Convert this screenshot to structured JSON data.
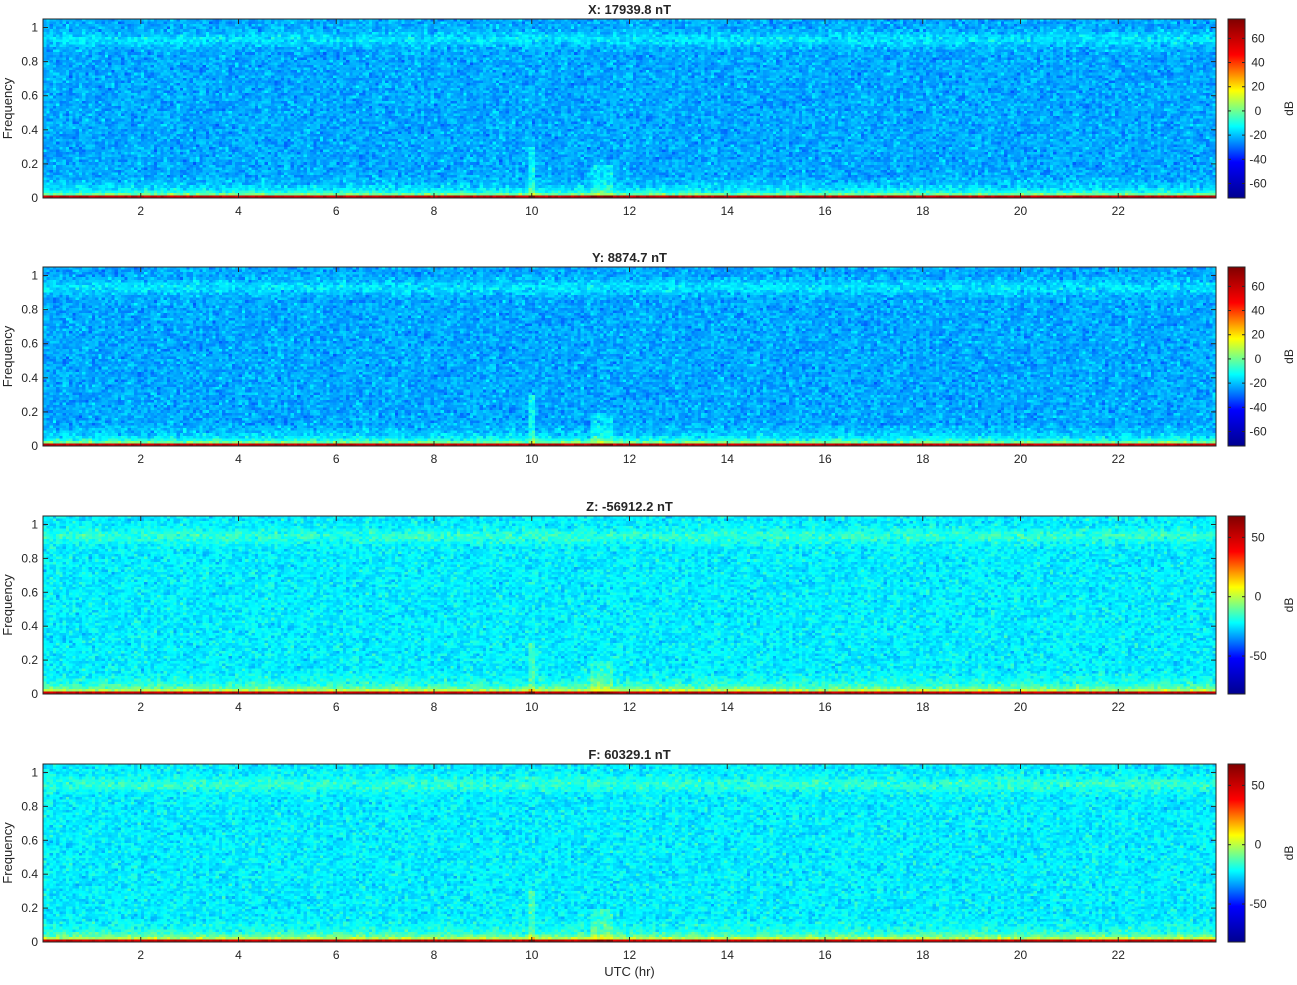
{
  "figure": {
    "xlabel": "UTC (hr)",
    "ylabel": "Frequency",
    "colormap": "jet",
    "colors": [
      "#00008f",
      "#0000ff",
      "#00ffff",
      "#ffff00",
      "#ff0000",
      "#800000"
    ]
  },
  "chart_data": [
    {
      "type": "heatmap",
      "title": "X: 17939.8 nT",
      "xlabel": "",
      "ylabel": "Frequency",
      "xlim": [
        0,
        24
      ],
      "ylim": [
        0,
        1.05
      ],
      "xticks": [
        2,
        4,
        6,
        8,
        10,
        12,
        14,
        16,
        18,
        20,
        22
      ],
      "yticks": [
        0,
        0.2,
        0.4,
        0.6,
        0.8,
        1
      ],
      "colorbar": {
        "label": "dB",
        "range": [
          -72,
          76
        ],
        "ticks": [
          -60,
          -40,
          -20,
          0,
          20,
          40,
          60
        ]
      }
    },
    {
      "type": "heatmap",
      "title": "Y: 8874.7 nT",
      "xlabel": "",
      "ylabel": "Frequency",
      "xlim": [
        0,
        24
      ],
      "ylim": [
        0,
        1.05
      ],
      "xticks": [
        2,
        4,
        6,
        8,
        10,
        12,
        14,
        16,
        18,
        20,
        22
      ],
      "yticks": [
        0,
        0.2,
        0.4,
        0.6,
        0.8,
        1
      ],
      "colorbar": {
        "label": "dB",
        "range": [
          -72,
          76
        ],
        "ticks": [
          -60,
          -40,
          -20,
          0,
          20,
          40,
          60
        ]
      }
    },
    {
      "type": "heatmap",
      "title": "Z: -56912.2 nT",
      "xlabel": "",
      "ylabel": "Frequency",
      "xlim": [
        0,
        24
      ],
      "ylim": [
        0,
        1.05
      ],
      "xticks": [
        2,
        4,
        6,
        8,
        10,
        12,
        14,
        16,
        18,
        20,
        22
      ],
      "yticks": [
        0,
        0.2,
        0.4,
        0.6,
        0.8,
        1
      ],
      "colorbar": {
        "label": "dB",
        "range": [
          -82,
          68
        ],
        "ticks": [
          -50,
          0,
          50
        ]
      }
    },
    {
      "type": "heatmap",
      "title": "F: 60329.1 nT",
      "xlabel": "UTC (hr)",
      "ylabel": "Frequency",
      "xlim": [
        0,
        24
      ],
      "ylim": [
        0,
        1.05
      ],
      "xticks": [
        2,
        4,
        6,
        8,
        10,
        12,
        14,
        16,
        18,
        20,
        22
      ],
      "yticks": [
        0,
        0.2,
        0.4,
        0.6,
        0.8,
        1
      ],
      "colorbar": {
        "label": "dB",
        "range": [
          -82,
          68
        ],
        "ticks": [
          -50,
          0,
          50
        ]
      }
    }
  ]
}
